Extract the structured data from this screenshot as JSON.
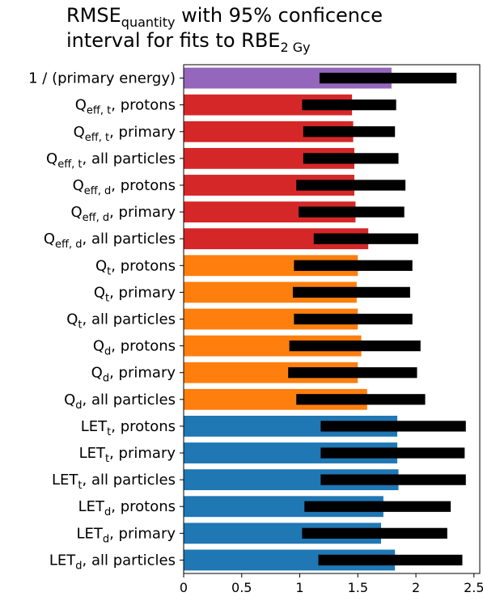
{
  "chart_data": {
    "type": "bar",
    "orientation": "horizontal",
    "title": {
      "line1": {
        "main": "RMSE",
        "sub": "quantity",
        "rest": " with 95% conficence"
      },
      "line2": {
        "main": "interval for fits to RBE",
        "sub": "2 Gy",
        "rest": ""
      }
    },
    "xlim": [
      0,
      2.55
    ],
    "xticks": [
      {
        "value": 0,
        "label": "0"
      },
      {
        "value": 0.5,
        "label": "0.5"
      },
      {
        "value": 1,
        "label": "1"
      },
      {
        "value": 1.5,
        "label": "1.5"
      },
      {
        "value": 2,
        "label": "2"
      },
      {
        "value": 2.5,
        "label": "2.5"
      }
    ],
    "grid": false,
    "colors": {
      "purple": "#9467bd",
      "red": "#d62728",
      "orange": "#ff7f0e",
      "blue": "#1f77b4",
      "interval": "#000000"
    },
    "categories": [
      {
        "main": "1 / (primary energy)",
        "sub": "",
        "rest": "",
        "value": 1.79,
        "ci": [
          1.17,
          2.35
        ],
        "color": "purple"
      },
      {
        "main": "Q",
        "sub": "eff, t",
        "rest": ", protons",
        "value": 1.45,
        "ci": [
          1.02,
          1.83
        ],
        "color": "red"
      },
      {
        "main": "Q",
        "sub": "eff, t",
        "rest": ", primary",
        "value": 1.46,
        "ci": [
          1.03,
          1.82
        ],
        "color": "red"
      },
      {
        "main": "Q",
        "sub": "eff, t",
        "rest": ", all particles",
        "value": 1.47,
        "ci": [
          1.03,
          1.85
        ],
        "color": "red"
      },
      {
        "main": "Q",
        "sub": "eff, d",
        "rest": ", protons",
        "value": 1.47,
        "ci": [
          0.97,
          1.91
        ],
        "color": "red"
      },
      {
        "main": "Q",
        "sub": "eff, d",
        "rest": ", primary",
        "value": 1.48,
        "ci": [
          0.99,
          1.9
        ],
        "color": "red"
      },
      {
        "main": "Q",
        "sub": "eff, d",
        "rest": ", all particles",
        "value": 1.59,
        "ci": [
          1.12,
          2.02
        ],
        "color": "red"
      },
      {
        "main": "Q",
        "sub": "t",
        "rest": ", protons",
        "value": 1.5,
        "ci": [
          0.95,
          1.97
        ],
        "color": "orange"
      },
      {
        "main": "Q",
        "sub": "t",
        "rest": ", primary",
        "value": 1.49,
        "ci": [
          0.94,
          1.95
        ],
        "color": "orange"
      },
      {
        "main": "Q",
        "sub": "t",
        "rest": ", all particles",
        "value": 1.5,
        "ci": [
          0.95,
          1.97
        ],
        "color": "orange"
      },
      {
        "main": "Q",
        "sub": "d",
        "rest": ", protons",
        "value": 1.53,
        "ci": [
          0.91,
          2.04
        ],
        "color": "orange"
      },
      {
        "main": "Q",
        "sub": "d",
        "rest": ", primary",
        "value": 1.5,
        "ci": [
          0.9,
          2.01
        ],
        "color": "orange"
      },
      {
        "main": "Q",
        "sub": "d",
        "rest": ", all particles",
        "value": 1.58,
        "ci": [
          0.97,
          2.08
        ],
        "color": "orange"
      },
      {
        "main": "LET",
        "sub": "t",
        "rest": ", protons",
        "value": 1.84,
        "ci": [
          1.18,
          2.43
        ],
        "color": "blue"
      },
      {
        "main": "LET",
        "sub": "t",
        "rest": ", primary",
        "value": 1.84,
        "ci": [
          1.18,
          2.42
        ],
        "color": "blue"
      },
      {
        "main": "LET",
        "sub": "t",
        "rest": ", all particles",
        "value": 1.85,
        "ci": [
          1.18,
          2.43
        ],
        "color": "blue"
      },
      {
        "main": "LET",
        "sub": "d",
        "rest": ", protons",
        "value": 1.72,
        "ci": [
          1.04,
          2.3
        ],
        "color": "blue"
      },
      {
        "main": "LET",
        "sub": "d",
        "rest": ", primary",
        "value": 1.7,
        "ci": [
          1.02,
          2.27
        ],
        "color": "blue"
      },
      {
        "main": "LET",
        "sub": "d",
        "rest": ", all particles",
        "value": 1.82,
        "ci": [
          1.16,
          2.4
        ],
        "color": "blue"
      }
    ]
  }
}
